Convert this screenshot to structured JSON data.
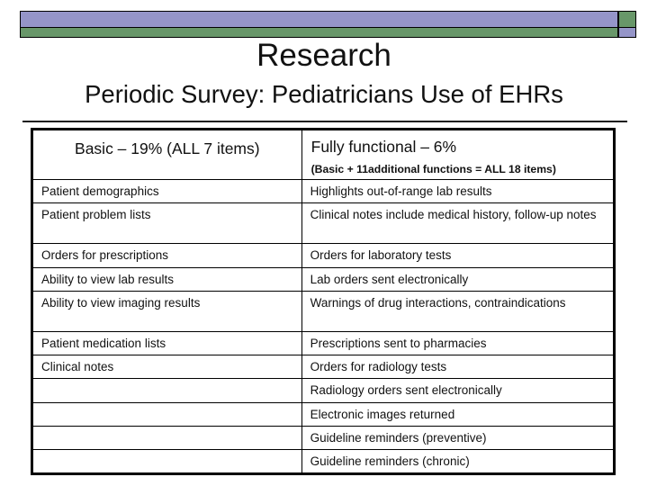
{
  "slide": {
    "title": "Research",
    "subtitle": "Periodic Survey: Pediatricians Use of EHRs"
  },
  "colors": {
    "bar_purple": "#9595c8",
    "bar_green": "#689769",
    "border": "#000000",
    "text": "#111111"
  },
  "table": {
    "header": {
      "basic_label": "Basic – 19% (ALL 7 items)",
      "fully_functional_label": "Fully functional – 6%",
      "fully_functional_note": "(Basic + 11additional functions = ALL 18 items)"
    },
    "rows": [
      {
        "left": "Patient demographics",
        "right": "Highlights out-of-range lab results",
        "tall": false
      },
      {
        "left": "Patient problem lists",
        "right": "Clinical notes include medical history, follow-up notes",
        "tall": true
      },
      {
        "left": "Orders for prescriptions",
        "right": "Orders for laboratory tests",
        "tall": false
      },
      {
        "left": "Ability to view lab results",
        "right": "Lab orders sent electronically",
        "tall": false
      },
      {
        "left": "Ability to view imaging results",
        "right": "Warnings of drug interactions, contraindications",
        "tall": true
      },
      {
        "left": "Patient medication lists",
        "right": "Prescriptions sent to pharmacies",
        "tall": false
      },
      {
        "left": "Clinical notes",
        "right": "Orders for radiology tests",
        "tall": false
      },
      {
        "left": "",
        "right": "Radiology orders sent electronically",
        "tall": false
      },
      {
        "left": "",
        "right": "Electronic images returned",
        "tall": false
      },
      {
        "left": "",
        "right": "Guideline reminders (preventive)",
        "tall": false
      },
      {
        "left": "",
        "right": "Guideline reminders (chronic)",
        "tall": false
      }
    ]
  }
}
